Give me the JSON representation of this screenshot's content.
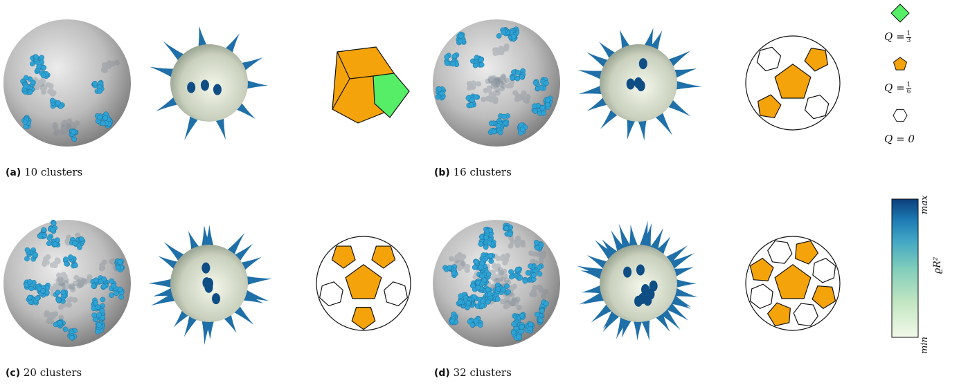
{
  "panels": [
    {
      "letter": "(a)",
      "text": "10 clusters",
      "clusters": 10
    },
    {
      "letter": "(b)",
      "text": "16 clusters",
      "clusters": 16
    },
    {
      "letter": "(c)",
      "text": "20 clusters",
      "clusters": 20
    },
    {
      "letter": "(d)",
      "text": "32 clusters",
      "clusters": 32
    }
  ],
  "legend": {
    "items": [
      {
        "shape": "square",
        "color": "#55ee66",
        "q_prefix": "Q =",
        "q_num": "1",
        "q_den": "3",
        "q_text": ""
      },
      {
        "shape": "pentagon",
        "color": "#f5a30a",
        "q_prefix": "Q =",
        "q_num": "1",
        "q_den": "6",
        "q_text": ""
      },
      {
        "shape": "hexagon",
        "color": "#ffffff",
        "q_prefix": "Q = 0",
        "q_num": "",
        "q_den": "",
        "q_text": ""
      }
    ]
  },
  "colorbar": {
    "label": "ϱR²",
    "max_label": "max",
    "min_label": "min",
    "colors": [
      "#f2f9e9",
      "#c3e6c2",
      "#7fcdbb",
      "#41a6c4",
      "#1d7ab3",
      "#0b3f7a"
    ]
  },
  "colors": {
    "sphere_gray": "#b8b8b8",
    "cluster_blue": "#2ea3d6",
    "pentagon_orange": "#f5a30a",
    "square_green": "#55ee66"
  }
}
